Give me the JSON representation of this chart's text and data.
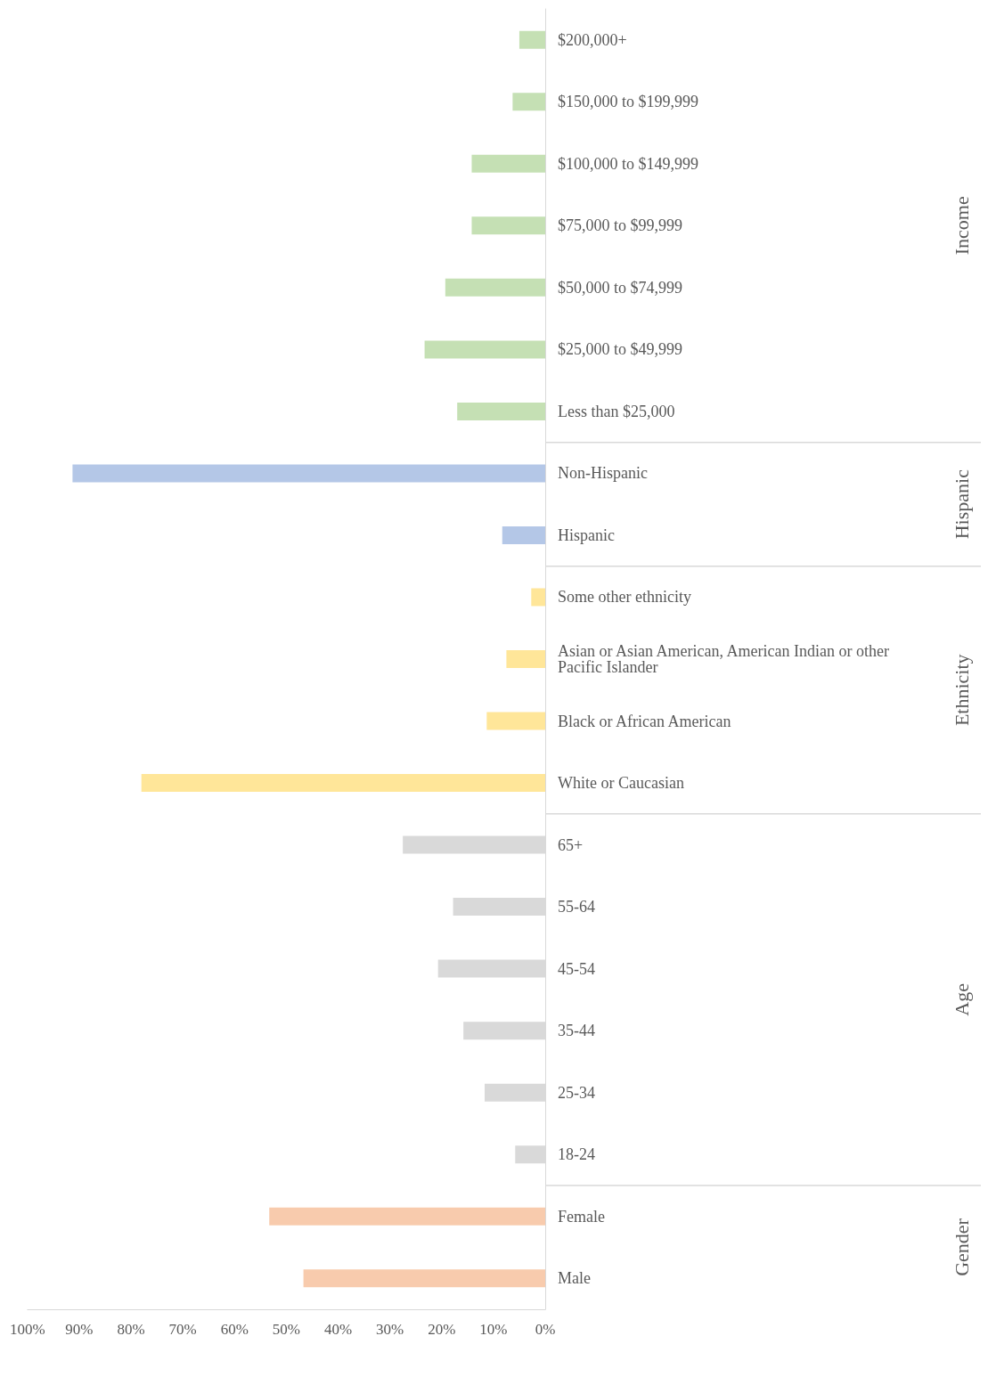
{
  "chart_data": {
    "type": "bar",
    "orientation": "horizontal",
    "categories": [
      "$200,000+",
      "$150,000 to $199,999",
      "$100,000 to $149,999",
      "$75,000 to $99,999",
      "$50,000 to $74,999",
      "$25,000 to $49,999",
      "Less than $25,000",
      "Non-Hispanic",
      "Hispanic",
      "Some other ethnicity",
      "Asian or Asian American, American Indian or other Pacific Islander",
      "Black or African American",
      "White or Caucasian",
      "65+",
      "55-64",
      "45-54",
      "35-44",
      "25-34",
      "18-24",
      "Female",
      "Male"
    ],
    "series": [
      {
        "name": "Income",
        "color": "#c5e0b4",
        "values": [
          5,
          6.3,
          14.2,
          14.2,
          19.3,
          23.3,
          17,
          null,
          null,
          null,
          null,
          null,
          null,
          null,
          null,
          null,
          null,
          null,
          null,
          null,
          null
        ]
      },
      {
        "name": "Hispanic",
        "color": "#b4c7e7",
        "values": [
          null,
          null,
          null,
          null,
          null,
          null,
          null,
          91.3,
          8.3,
          null,
          null,
          null,
          null,
          null,
          null,
          null,
          null,
          null,
          null,
          null,
          null
        ]
      },
      {
        "name": "Ethnicity",
        "color": "#ffe699",
        "values": [
          null,
          null,
          null,
          null,
          null,
          null,
          null,
          null,
          null,
          2.7,
          7.5,
          11.3,
          78,
          null,
          null,
          null,
          null,
          null,
          null,
          null,
          null
        ]
      },
      {
        "name": "Age",
        "color": "#d9d9d9",
        "values": [
          null,
          null,
          null,
          null,
          null,
          null,
          null,
          null,
          null,
          null,
          null,
          null,
          null,
          27.5,
          17.8,
          20.7,
          15.8,
          11.7,
          5.8,
          null,
          null
        ]
      },
      {
        "name": "Gender",
        "color": "#f8cbad",
        "values": [
          null,
          null,
          null,
          null,
          null,
          null,
          null,
          null,
          null,
          null,
          null,
          null,
          null,
          null,
          null,
          null,
          null,
          null,
          null,
          53.3,
          46.7
        ]
      }
    ],
    "xlim": [
      100,
      0
    ],
    "xticks": [
      {
        "value": 0,
        "label": "0%"
      },
      {
        "value": 10,
        "label": "10%"
      },
      {
        "value": 20,
        "label": "20%"
      },
      {
        "value": 30,
        "label": "30%"
      },
      {
        "value": 40,
        "label": "40%"
      },
      {
        "value": 50,
        "label": "50%"
      },
      {
        "value": 60,
        "label": "60%"
      },
      {
        "value": 70,
        "label": "70%"
      },
      {
        "value": 80,
        "label": "80%"
      },
      {
        "value": 90,
        "label": "90%"
      },
      {
        "value": 100,
        "label": "100%"
      }
    ]
  }
}
